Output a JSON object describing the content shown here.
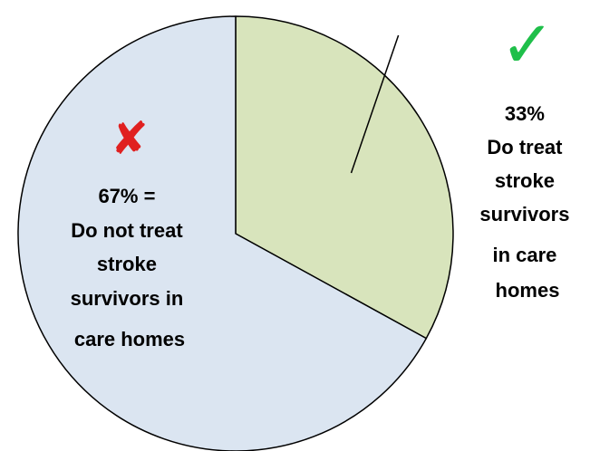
{
  "chart_data": {
    "type": "pie",
    "title": "",
    "slices": [
      {
        "value": 33,
        "color": "#d8e4bc",
        "icon": "check-icon",
        "icon_color": "#1fbf4a",
        "label_lines": [
          "33%",
          "Do treat",
          "stroke",
          "survivors",
          "in care",
          "homes"
        ]
      },
      {
        "value": 67,
        "color": "#dbe5f1",
        "icon": "cross-icon",
        "icon_color": "#e02020",
        "label_lines": [
          "67% =",
          "Do not treat",
          "stroke",
          "survivors in",
          "care homes"
        ]
      }
    ],
    "start_angle": "12 o'clock",
    "direction": "clockwise",
    "legend": "none",
    "icons": {
      "check": "✓",
      "cross": "✘"
    }
  }
}
